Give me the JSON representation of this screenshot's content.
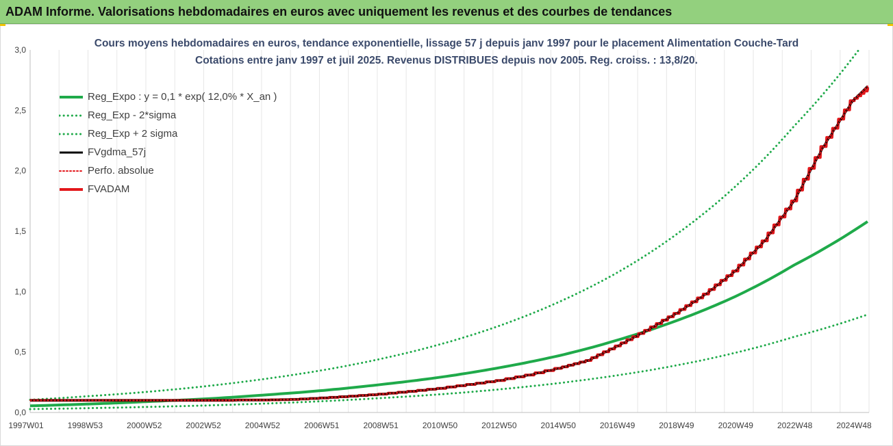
{
  "header": {
    "title": "ADAM Informe. Valorisations hebdomadaires en euros avec uniquement les revenus et des courbes de tendances"
  },
  "colors": {
    "header_bg": "#93d07e",
    "reg_expo": "#1faa4a",
    "fvgdma": "#000000",
    "fvadam": "#e3171b",
    "perfo": "#e3171b",
    "axis_text": "#404040",
    "grid": "#e6e6e6"
  },
  "chart_data": {
    "type": "line",
    "title": "Cours moyens hebdomadaires en euros, tendance exponentielle, lissage 57 j depuis janv 1997 pour le placement Alimentation Couche-Tard",
    "subtitle": "Cotations entre janv 1997 et juil 2025. Revenus DISTRIBUES depuis nov 2005. Reg. croiss. : 13,8/20.",
    "xlabel": "",
    "ylabel": "",
    "ylim": [
      0,
      3.0
    ],
    "xlim": [
      1997.0,
      2025.55
    ],
    "grid": "vertical",
    "legend_position": "top-left",
    "y_ticks": [
      "0,0",
      "0,5",
      "1,0",
      "1,5",
      "2,0",
      "2,5",
      "3,0"
    ],
    "x_ticks": [
      "1997W01",
      "1998W53",
      "2000W52",
      "2002W52",
      "2004W52",
      "2006W51",
      "2008W51",
      "2010W50",
      "2012W50",
      "2014W50",
      "2016W49",
      "2018W49",
      "2020W49",
      "2022W48",
      "2024W48"
    ],
    "legend": [
      {
        "label": "Reg_Expo : y = 0,1 * exp( 12,0% *  X_an )",
        "style": "solid",
        "color": "#1faa4a",
        "width": 4
      },
      {
        "label": "Reg_Exp - 2*sigma",
        "style": "dotted",
        "color": "#1faa4a",
        "width": 3
      },
      {
        "label": "Reg_Exp + 2 sigma",
        "style": "dotted",
        "color": "#1faa4a",
        "width": 3
      },
      {
        "label": "FVgdma_57j",
        "style": "solid",
        "color": "#000000",
        "width": 3
      },
      {
        "label": "Perfo. absolue",
        "style": "dotted",
        "color": "#e3171b",
        "width": 2
      },
      {
        "label": "FVADAM",
        "style": "solid",
        "color": "#e3171b",
        "width": 4
      }
    ],
    "series": [
      {
        "name": "Reg_Expo : y = 0,1 * exp( 12,0% *  X_an )",
        "x": [
          1997,
          1999,
          2001,
          2003,
          2005,
          2007,
          2009,
          2011,
          2013,
          2015,
          2017,
          2019,
          2021,
          2023,
          2025.5
        ],
        "y": [
          0.055,
          0.07,
          0.09,
          0.113,
          0.145,
          0.183,
          0.233,
          0.293,
          0.372,
          0.47,
          0.6,
          0.76,
          0.96,
          1.22,
          1.58
        ]
      },
      {
        "name": "Reg_Exp - 2*sigma",
        "x": [
          1997,
          1999,
          2001,
          2003,
          2005,
          2007,
          2009,
          2011,
          2013,
          2015,
          2017,
          2019,
          2021,
          2023,
          2025.5
        ],
        "y": [
          0.028,
          0.036,
          0.046,
          0.058,
          0.074,
          0.094,
          0.12,
          0.151,
          0.192,
          0.243,
          0.308,
          0.39,
          0.494,
          0.626,
          0.81
        ]
      },
      {
        "name": "Reg_Exp + 2 sigma",
        "x": [
          1997,
          1999,
          2001,
          2003,
          2005,
          2007,
          2009,
          2011,
          2013,
          2015,
          2017,
          2019,
          2021,
          2023,
          2025.2
        ],
        "y": [
          0.105,
          0.135,
          0.171,
          0.218,
          0.278,
          0.352,
          0.447,
          0.567,
          0.72,
          0.915,
          1.16,
          1.475,
          1.87,
          2.37,
          3.0
        ]
      },
      {
        "name": "FVgdma_57j",
        "x": [
          1997,
          1999,
          2001,
          2003,
          2005,
          2006,
          2007,
          2008,
          2009,
          2010,
          2011,
          2012,
          2013,
          2014,
          2015,
          2016,
          2017,
          2018,
          2019,
          2020,
          2021,
          2022,
          2023,
          2024,
          2025,
          2025.5
        ],
        "y": [
          0.1,
          0.1,
          0.1,
          0.1,
          0.103,
          0.108,
          0.12,
          0.135,
          0.152,
          0.175,
          0.2,
          0.232,
          0.265,
          0.31,
          0.365,
          0.43,
          0.55,
          0.68,
          0.82,
          0.98,
          1.17,
          1.42,
          1.75,
          2.2,
          2.58,
          2.7
        ]
      },
      {
        "name": "Perfo. absolue",
        "x": [
          1997,
          1999,
          2001,
          2003,
          2005,
          2006,
          2007,
          2008,
          2009,
          2010,
          2011,
          2012,
          2013,
          2014,
          2015,
          2016,
          2017,
          2018,
          2019,
          2020,
          2021,
          2022,
          2023,
          2024,
          2025,
          2025.5
        ],
        "y": [
          0.1,
          0.1,
          0.1,
          0.1,
          0.103,
          0.108,
          0.12,
          0.135,
          0.152,
          0.175,
          0.2,
          0.232,
          0.265,
          0.31,
          0.365,
          0.43,
          0.55,
          0.68,
          0.82,
          0.98,
          1.17,
          1.42,
          1.75,
          2.2,
          2.58,
          2.7
        ]
      },
      {
        "name": "FVADAM",
        "x": [
          1997,
          1999,
          2001,
          2003,
          2005,
          2006,
          2007,
          2008,
          2009,
          2010,
          2011,
          2012,
          2013,
          2014,
          2015,
          2016,
          2017,
          2018,
          2019,
          2020,
          2021,
          2022,
          2023,
          2024,
          2025,
          2025.55
        ],
        "y": [
          0.1,
          0.1,
          0.1,
          0.1,
          0.103,
          0.108,
          0.12,
          0.135,
          0.152,
          0.175,
          0.2,
          0.232,
          0.265,
          0.31,
          0.365,
          0.43,
          0.55,
          0.68,
          0.82,
          0.98,
          1.17,
          1.42,
          1.75,
          2.2,
          2.58,
          2.68
        ]
      }
    ]
  }
}
